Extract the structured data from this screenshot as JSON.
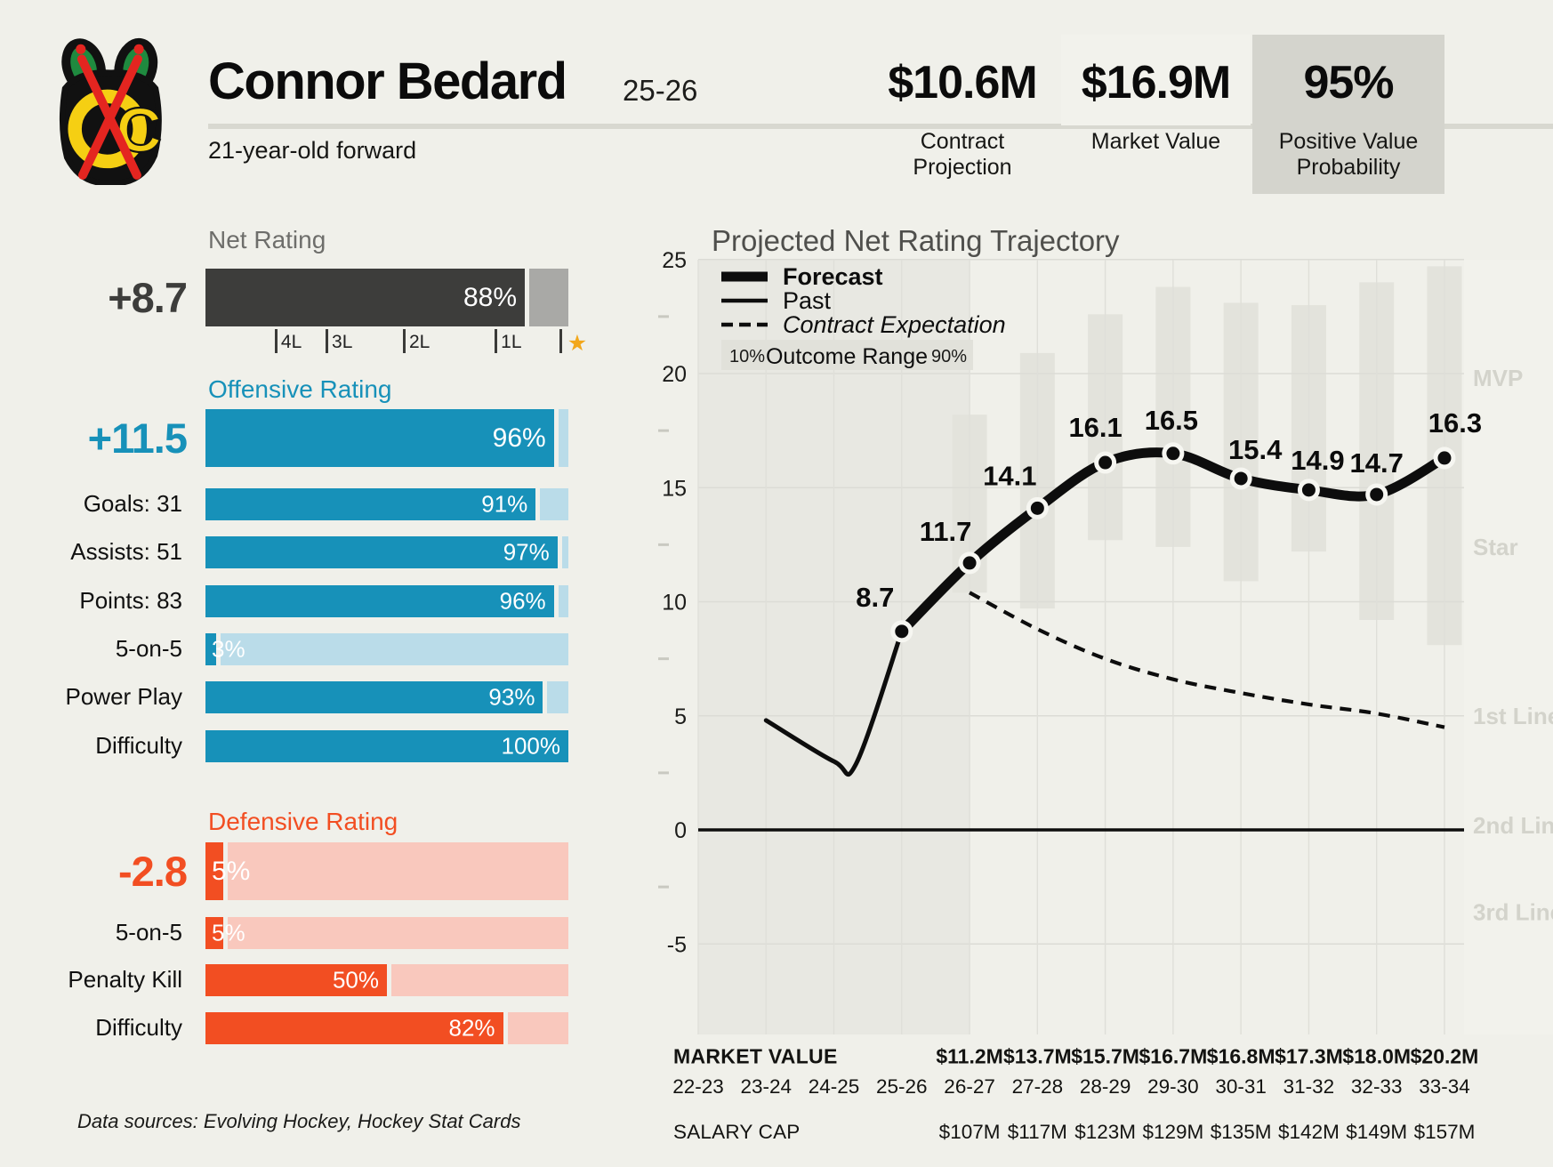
{
  "header": {
    "player_name": "Connor Bedard",
    "season": "25-26",
    "subtitle": "21-year-old forward",
    "stats": [
      {
        "value": "$10.6M",
        "label_lines": [
          "Contract",
          "Projection"
        ]
      },
      {
        "value": "$16.9M",
        "label_lines": [
          "Market Value"
        ]
      },
      {
        "value": "95%",
        "label_lines": [
          "Positive Value",
          "Probability"
        ]
      }
    ]
  },
  "ratings": {
    "net": {
      "title": "Net Rating",
      "value": "+8.7",
      "main": {
        "percent": 88,
        "text": "88%"
      },
      "ticks": [
        {
          "label": "4L",
          "pos": 19.1
        },
        {
          "label": "3L",
          "pos": 33.1
        },
        {
          "label": "2L",
          "pos": 54.4
        },
        {
          "label": "1L",
          "pos": 79.7
        },
        {
          "label": "",
          "pos": 97.5,
          "star": true
        }
      ]
    },
    "offense": {
      "title": "Offensive Rating",
      "value": "+11.5",
      "main": {
        "percent": 96,
        "text": "96%"
      },
      "rows": [
        {
          "label": "Goals: 31",
          "percent": 91,
          "text": "91%"
        },
        {
          "label": "Assists: 51",
          "percent": 97,
          "text": "97%"
        },
        {
          "label": "Points: 83",
          "percent": 96,
          "text": "96%"
        },
        {
          "label": "5-on-5",
          "percent": 3,
          "text": "3%"
        },
        {
          "label": "Power Play",
          "percent": 93,
          "text": "93%"
        },
        {
          "label": "Difficulty",
          "percent": 100,
          "text": "100%"
        }
      ]
    },
    "defense": {
      "title": "Defensive Rating",
      "value": "-2.8",
      "main": {
        "percent": 5,
        "text": "5%"
      },
      "rows": [
        {
          "label": "5-on-5",
          "percent": 5,
          "text": "5%"
        },
        {
          "label": "Penalty Kill",
          "percent": 50,
          "text": "50%"
        },
        {
          "label": "Difficulty",
          "percent": 82,
          "text": "82%"
        }
      ]
    }
  },
  "footnote": "Data sources: Evolving Hockey, Hockey Stat Cards",
  "chart_data": {
    "type": "line",
    "title": "Projected Net Rating Trajectory",
    "x_categories": [
      "22-23",
      "23-24",
      "24-25",
      "25-26",
      "26-27",
      "27-28",
      "28-29",
      "29-30",
      "30-31",
      "31-32",
      "32-33",
      "33-34"
    ],
    "ylim": [
      -8,
      25.6
    ],
    "yticks": [
      25,
      20,
      15,
      10,
      5,
      0,
      -5
    ],
    "minor_yticks": [
      22.5,
      17.5,
      12.5,
      7.5,
      2.5,
      -2.5
    ],
    "grid": true,
    "zero_line": true,
    "legend_position": "top-left",
    "series": [
      {
        "name": "Forecast",
        "style": "thick",
        "start_index": 3,
        "values": [
          8.7,
          11.7,
          14.1,
          16.1,
          16.5,
          15.4,
          14.9,
          14.7,
          16.3
        ],
        "labeled": true
      },
      {
        "name": "Past",
        "style": "thin",
        "start_index": 1,
        "values": [
          4.8,
          3.0,
          8.7
        ],
        "labeled": false
      },
      {
        "name": "Contract Expectation",
        "style": "dashed",
        "start_index": 4,
        "values": [
          10.4,
          8.8,
          7.5,
          6.6,
          6.0,
          5.5,
          5.1,
          4.5
        ],
        "labeled": false
      }
    ],
    "outcome_range": {
      "label": "Outcome Range",
      "low_label": "10%",
      "high_label": "90%",
      "start_index": 4,
      "ranges": [
        [
          10.4,
          18.2
        ],
        [
          9.7,
          20.9
        ],
        [
          12.7,
          22.6
        ],
        [
          12.4,
          23.8
        ],
        [
          10.9,
          23.1
        ],
        [
          12.2,
          23.0
        ],
        [
          9.2,
          24.0
        ],
        [
          8.1,
          24.7
        ]
      ]
    },
    "past_region_end_index": 4,
    "band_labels": [
      {
        "label": "MVP",
        "value": 19.8
      },
      {
        "label": "Star",
        "value": 12.4
      },
      {
        "label": "1st Line",
        "value": 5.0
      },
      {
        "label": "2nd Line",
        "value": 0.2
      },
      {
        "label": "3rd Line",
        "value": -3.6
      }
    ]
  },
  "table": {
    "rows": [
      {
        "label": "MARKET VALUE",
        "bold": true,
        "values": [
          "",
          "",
          "",
          "",
          "$11.2M",
          "$13.7M",
          "$15.7M",
          "$16.7M",
          "$16.8M",
          "$17.3M",
          "$18.0M",
          "$20.2M"
        ]
      },
      {
        "label": "",
        "bold": false,
        "values": [
          "22-23",
          "23-24",
          "24-25",
          "25-26",
          "26-27",
          "27-28",
          "28-29",
          "29-30",
          "30-31",
          "31-32",
          "32-33",
          "33-34"
        ]
      },
      {
        "label": "SALARY CAP",
        "bold": false,
        "values": [
          "",
          "",
          "",
          "",
          "$107M",
          "$117M",
          "$123M",
          "$129M",
          "$135M",
          "$142M",
          "$149M",
          "$157M"
        ]
      }
    ]
  },
  "colors": {
    "background": "#f0f0ea",
    "charcoal": "#3d3d3b",
    "gray_remainder": "#a9a9a6",
    "blue": "#1791b9",
    "blue_track": "#badce9",
    "orange": "#f24e22",
    "orange_track": "#f9c8bd",
    "star_gold": "#f2a71b",
    "line_black": "#0d0d0d",
    "gridline": "#dcdcd6",
    "past_shade": "#e8e8e2",
    "outcome_bar": "#e3e3dc",
    "band_label": "#d3d3cb",
    "legend_box": "#e1e1da",
    "chart_title": "#4f4f4c"
  }
}
